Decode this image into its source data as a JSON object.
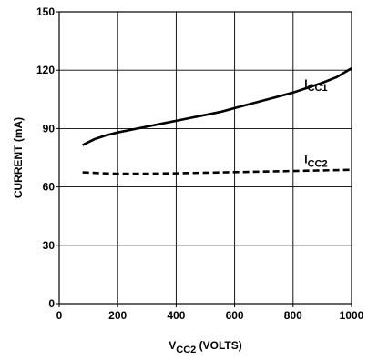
{
  "chart_data": {
    "type": "line",
    "title": "",
    "xlabel": {
      "main": "V",
      "sub": "CC2",
      "suffix": " (VOLTS)"
    },
    "ylabel": "CURRENT (mA)",
    "xlim": [
      0,
      1000
    ],
    "ylim": [
      0,
      150
    ],
    "x_ticks": [
      0,
      200,
      400,
      600,
      800,
      1000
    ],
    "y_ticks": [
      0,
      30,
      60,
      90,
      120,
      150
    ],
    "x_tick_labels": [
      "0",
      "200",
      "400",
      "600",
      "800",
      "1000"
    ],
    "y_tick_labels": [
      "0",
      "30",
      "60",
      "90",
      "120",
      "150"
    ],
    "grid": true,
    "legend": "none",
    "series": [
      {
        "label_main": "I",
        "label_sub": "CC1",
        "style": "solid",
        "color": "#000000",
        "x": [
          80,
          120,
          160,
          200,
          250,
          300,
          350,
          400,
          450,
          500,
          550,
          600,
          650,
          700,
          750,
          800,
          850,
          900,
          950,
          1000
        ],
        "y": [
          81.5,
          84.5,
          86.5,
          88,
          89.5,
          91,
          92.5,
          94,
          95.5,
          97,
          98.5,
          100.5,
          102.5,
          104.5,
          106.5,
          108.5,
          111,
          113.5,
          116.5,
          121
        ]
      },
      {
        "label_main": "I",
        "label_sub": "CC2",
        "style": "dashed",
        "color": "#000000",
        "x": [
          80,
          150,
          200,
          300,
          400,
          500,
          600,
          700,
          800,
          900,
          1000
        ],
        "y": [
          67.5,
          67.0,
          66.8,
          66.8,
          67.0,
          67.3,
          67.6,
          67.9,
          68.2,
          68.5,
          68.8
        ]
      }
    ]
  }
}
